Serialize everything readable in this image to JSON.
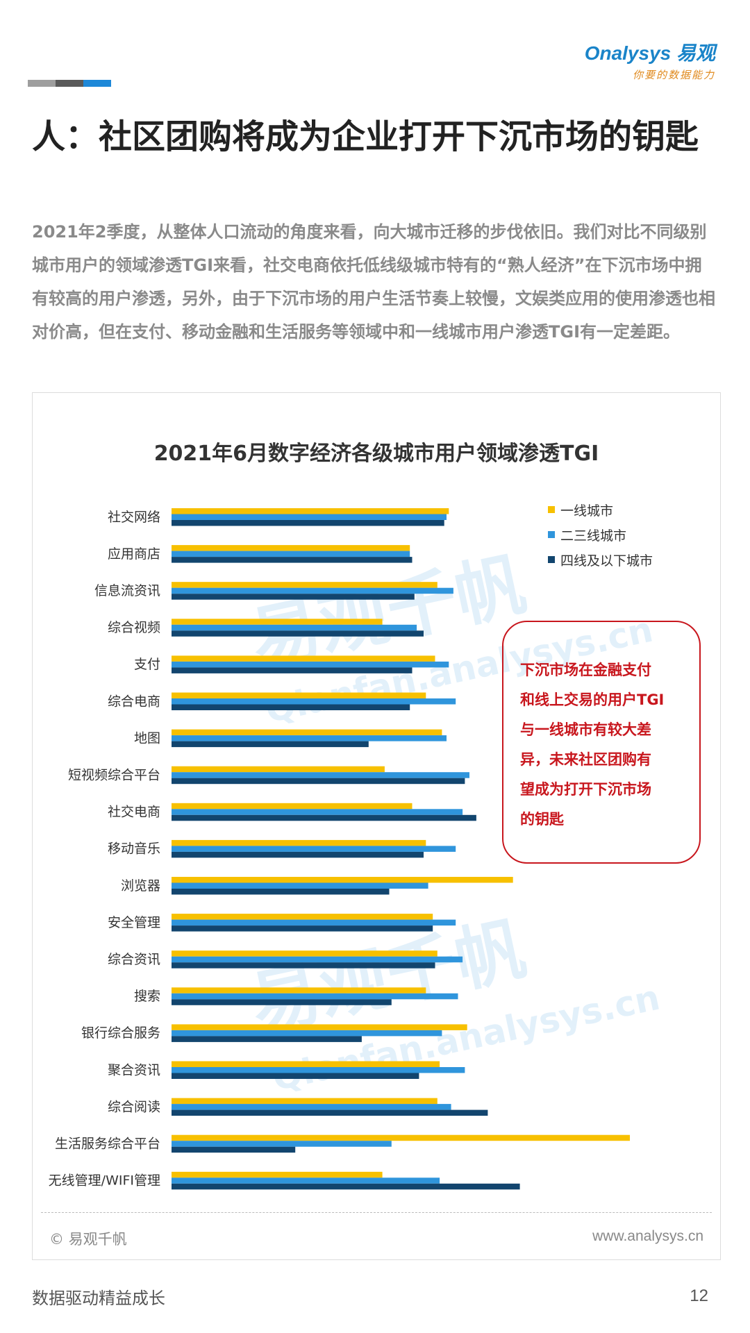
{
  "header": {
    "logo_brand": "Onalysys 易观",
    "logo_tagline": "你要的数据能力",
    "deco_colors": [
      "#9e9e9e",
      "#5a5a5a",
      "#1e88d8"
    ]
  },
  "title": "人：社区团购将成为企业打开下沉市场的钥匙",
  "paragraph": "2021年2季度，从整体人口流动的角度来看，向大城市迁移的步伐依旧。我们对比不同级别城市用户的领域渗透TGI来看，社交电商依托低线级城市特有的“熟人经济”在下沉市场中拥有较高的用户渗透，另外，由于下沉市场的用户生活节奏上较慢，文娱类应用的使用渗透也相对价高，但在支付、移动金融和生活服务等领域中和一线城市用户渗透TGI有一定差距。",
  "chart_data": {
    "type": "bar",
    "orientation": "horizontal",
    "title": "2021年6月数字经济各级城市用户领域渗透TGI",
    "categories": [
      "社交网络",
      "应用商店",
      "信息流资讯",
      "综合视频",
      "支付",
      "综合电商",
      "地图",
      "短视频综合平台",
      "社交电商",
      "移动音乐",
      "浏览器",
      "安全管理",
      "综合资讯",
      "搜索",
      "银行综合服务",
      "聚合资讯",
      "综合阅读",
      "生活服务综合平台",
      "无线管理/WIFI管理"
    ],
    "series": [
      {
        "name": "一线城市",
        "color": "#f7c000",
        "values": [
          121,
          104,
          116,
          92,
          115,
          111,
          118,
          93,
          105,
          111,
          149,
          114,
          116,
          111,
          129,
          117,
          116,
          200,
          92
        ]
      },
      {
        "name": "二三线城市",
        "color": "#2f95dc",
        "values": [
          120,
          104,
          123,
          107,
          121,
          124,
          120,
          130,
          127,
          124,
          112,
          124,
          127,
          125,
          118,
          128,
          122,
          96,
          117
        ]
      },
      {
        "name": "四线及以下城市",
        "color": "#12456e",
        "values": [
          119,
          105,
          106,
          110,
          105,
          104,
          86,
          128,
          133,
          110,
          95,
          114,
          115,
          96,
          83,
          108,
          138,
          54,
          152
        ]
      }
    ],
    "xlim": [
      0,
      205
    ],
    "grid": false,
    "legend_position": "top-right",
    "x_axis_visible": false
  },
  "callout": {
    "lines": [
      "下沉市场在金融支付",
      "和线上交易的用户TGI",
      "与一线城市有较大差",
      "异，未来社区团购有",
      "望成为打开下沉市场",
      "的钥匙"
    ]
  },
  "watermark": {
    "cn": "易观千帆",
    "en": "Qianfan.analysys.cn"
  },
  "chart_footer": {
    "source": "© 易观千帆",
    "url": "www.analysys.cn"
  },
  "footer": {
    "slogan": "数据驱动精益成长",
    "page": "12"
  }
}
